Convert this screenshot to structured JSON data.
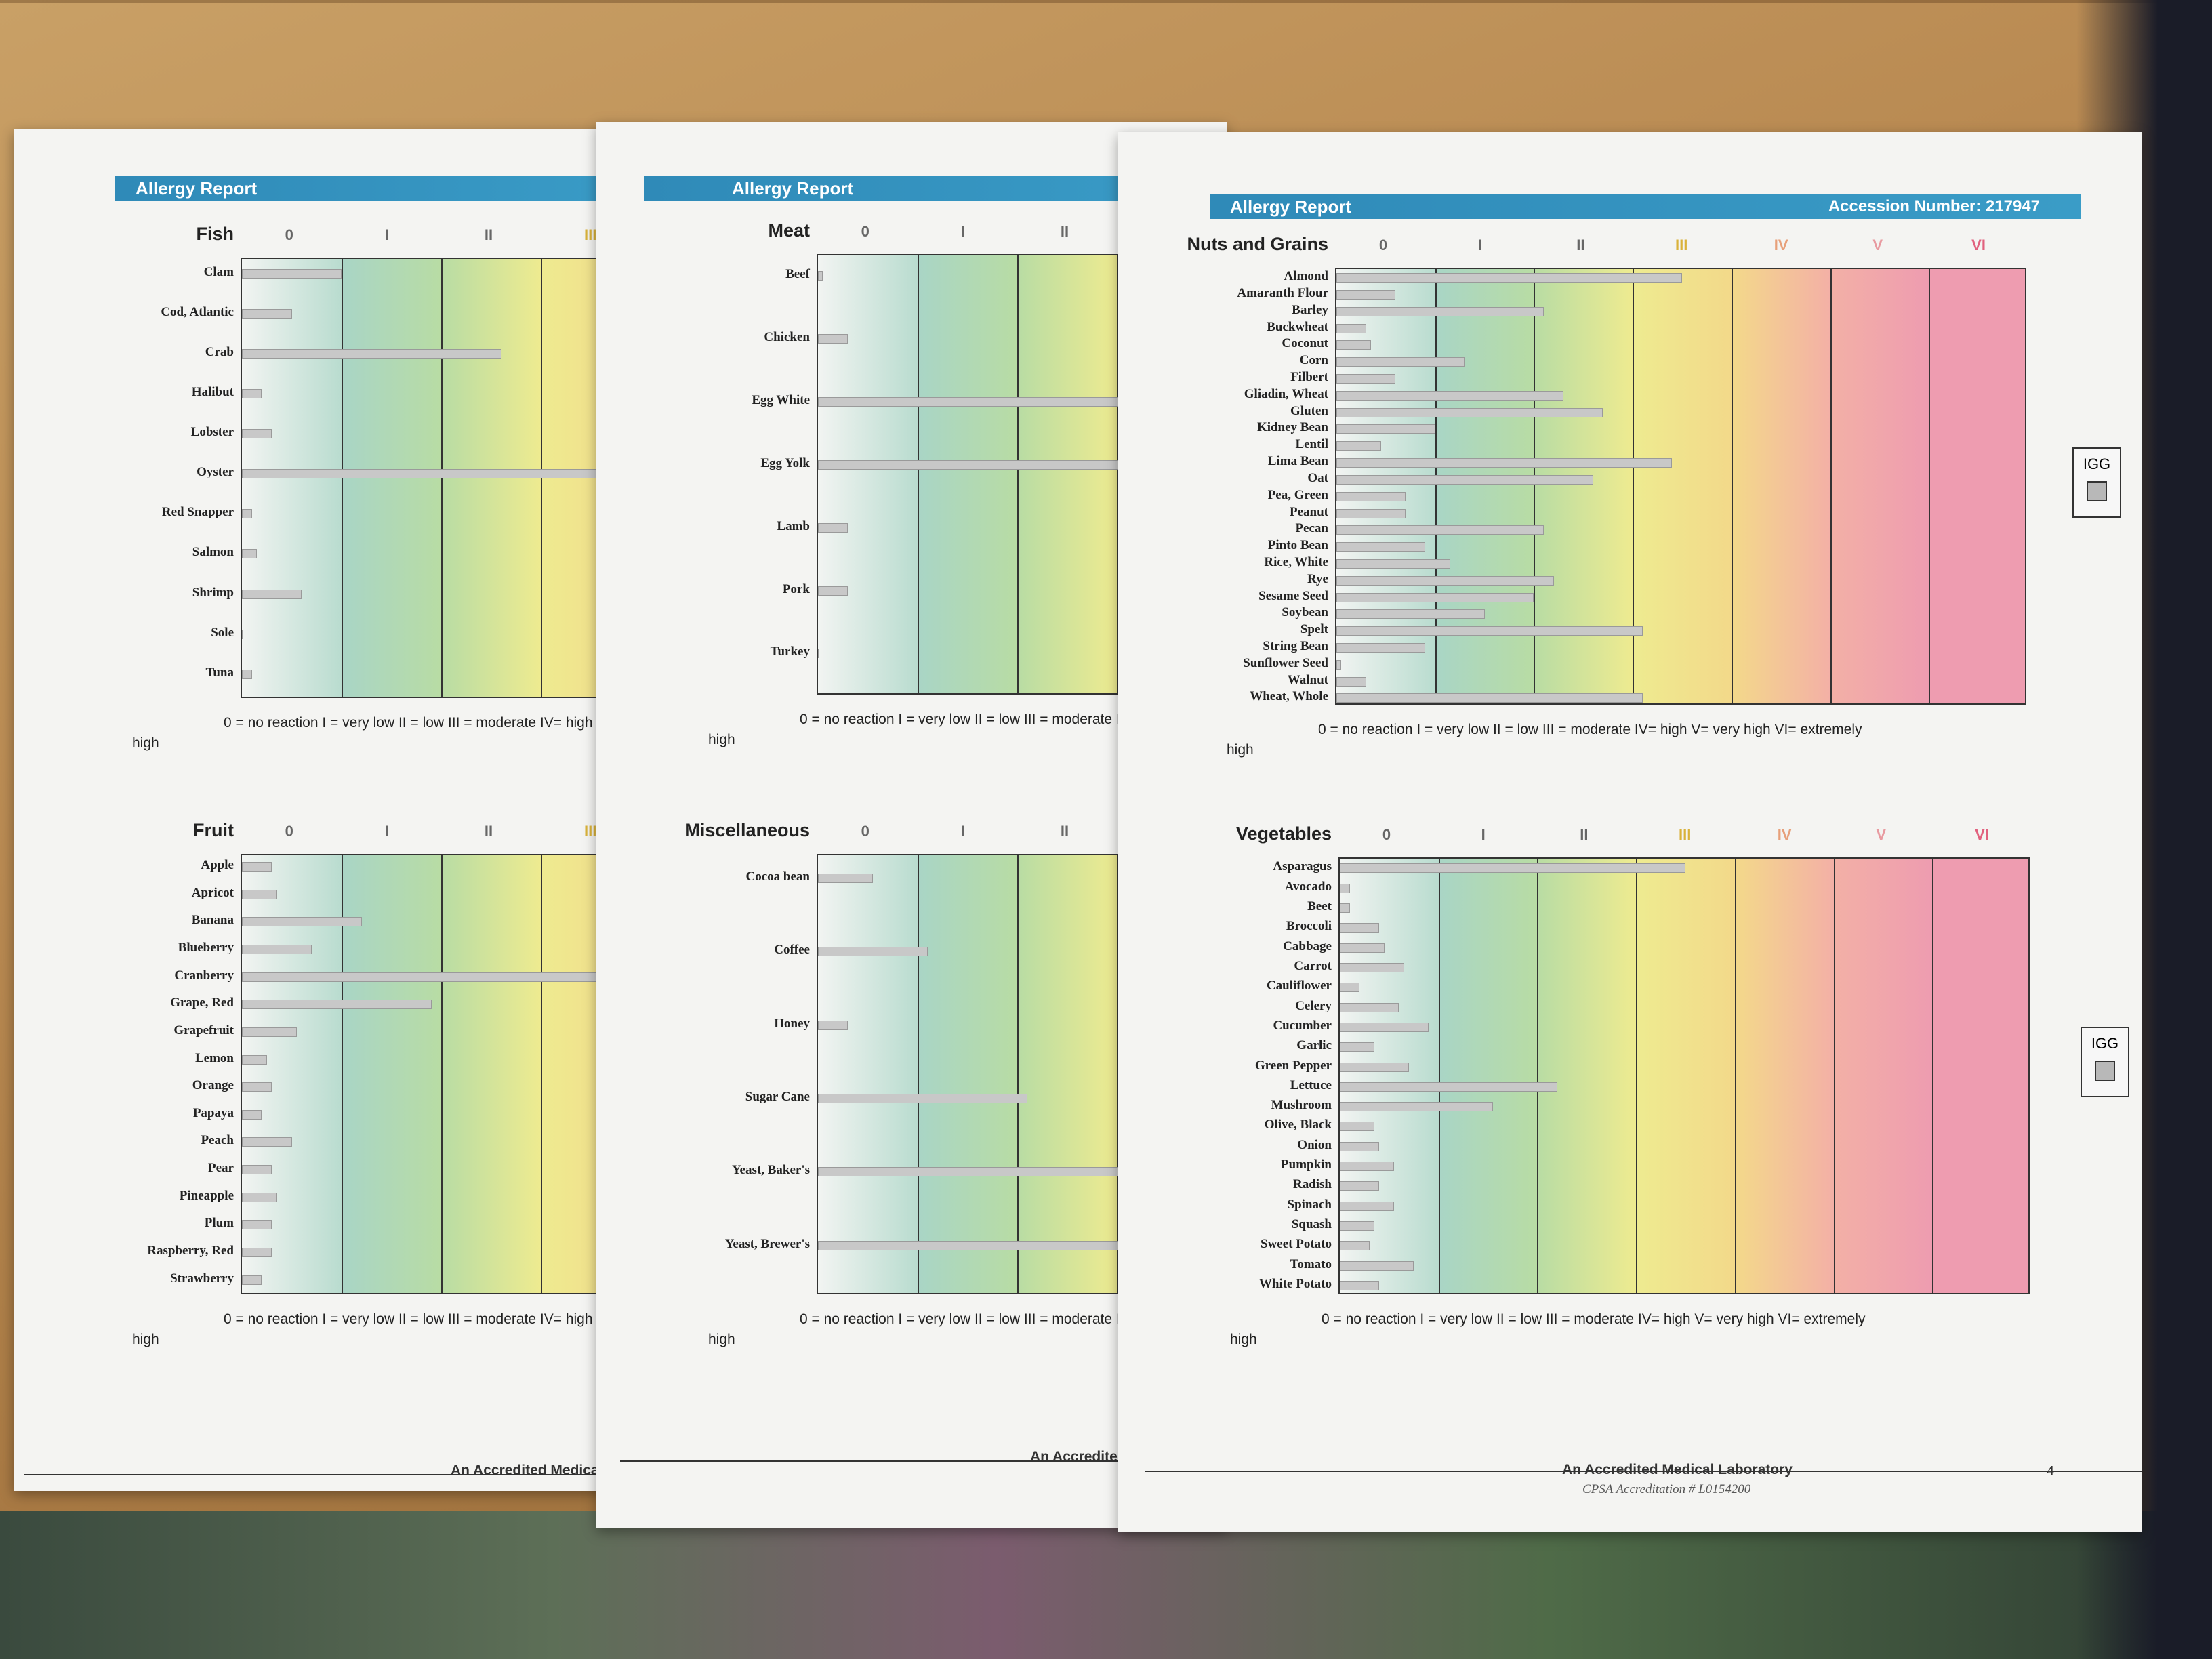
{
  "report_title": "Allergy Report",
  "accession": "Accession Number: 217947",
  "igg_label": "IGG",
  "footer_lab": "An Accredited Medical Laboratory",
  "footer_cps": "CPSA Accreditation # L0154200",
  "page_number": "4",
  "legend": {
    "text": "0 = no reaction   I = very low     II = low     III = moderate    IV= high    V= very high   VI= extremely",
    "high": "high"
  },
  "classes": [
    "0",
    "I",
    "II",
    "III",
    "IV",
    "V",
    "VI"
  ],
  "class_colors": [
    "#eaf2ef",
    "#a9d5c6",
    "#b8dca4",
    "#eeeb90",
    "#f3d98a",
    "#f3b0a6",
    "#ee9cb0"
  ],
  "chart_data": [
    {
      "type": "bar",
      "orientation": "horizontal",
      "title": "Fish",
      "categories": [
        "Clam",
        "Cod, Atlantic",
        "Crab",
        "Halibut",
        "Lobster",
        "Oyster",
        "Red Snapper",
        "Salmon",
        "Shrimp",
        "Sole",
        "Tuna"
      ],
      "values": [
        1.0,
        0.5,
        2.6,
        0.2,
        0.3,
        3.9,
        0.1,
        0.15,
        0.6,
        0.0,
        0.1
      ],
      "xlim": [
        0,
        7
      ]
    },
    {
      "type": "bar",
      "orientation": "horizontal",
      "title": "Fruit",
      "categories": [
        "Apple",
        "Apricot",
        "Banana",
        "Blueberry",
        "Cranberry",
        "Grape, Red",
        "Grapefruit",
        "Lemon",
        "Orange",
        "Papaya",
        "Peach",
        "Pear",
        "Pineapple",
        "Plum",
        "Raspberry, Red",
        "Strawberry"
      ],
      "values": [
        0.3,
        0.35,
        1.2,
        0.7,
        3.6,
        1.9,
        0.55,
        0.25,
        0.3,
        0.2,
        0.5,
        0.3,
        0.35,
        0.3,
        0.3,
        0.2
      ],
      "xlim": [
        0,
        7
      ]
    },
    {
      "type": "bar",
      "orientation": "horizontal",
      "title": "Meat",
      "categories": [
        "Beef",
        "Chicken",
        "Egg White",
        "Egg Yolk",
        "Lamb",
        "Pork",
        "Turkey"
      ],
      "values": [
        0.05,
        0.3,
        3.3,
        3.3,
        0.3,
        0.3,
        0.0
      ],
      "xlim": [
        0,
        7
      ]
    },
    {
      "type": "bar",
      "orientation": "horizontal",
      "title": "Miscellaneous",
      "categories": [
        "Cocoa bean",
        "Coffee",
        "Honey",
        "Sugar Cane",
        "Yeast, Baker's",
        "Yeast, Brewer's"
      ],
      "values": [
        0.55,
        1.1,
        0.3,
        2.1,
        3.3,
        3.3
      ],
      "xlim": [
        0,
        7
      ]
    },
    {
      "type": "bar",
      "orientation": "horizontal",
      "title": "Nuts and Grains",
      "categories": [
        "Almond",
        "Amaranth Flour",
        "Barley",
        "Buckwheat",
        "Coconut",
        "Corn",
        "Filbert",
        "Gliadin, Wheat",
        "Gluten",
        "Kidney Bean",
        "Lentil",
        "Lima Bean",
        "Oat",
        "Pea, Green",
        "Peanut",
        "Pecan",
        "Pinto Bean",
        "Rice, White",
        "Rye",
        "Sesame Seed",
        "Soybean",
        "Spelt",
        "String Bean",
        "Sunflower Seed",
        "Walnut",
        "Wheat, Whole"
      ],
      "values": [
        3.5,
        0.6,
        2.1,
        0.3,
        0.35,
        1.3,
        0.6,
        2.3,
        2.7,
        1.0,
        0.45,
        3.4,
        2.6,
        0.7,
        0.7,
        2.1,
        0.9,
        1.15,
        2.2,
        2.0,
        1.5,
        3.1,
        0.9,
        0.05,
        0.3,
        3.1
      ],
      "xlim": [
        0,
        7
      ]
    },
    {
      "type": "bar",
      "orientation": "horizontal",
      "title": "Vegetables",
      "categories": [
        "Asparagus",
        "Avocado",
        "Beet",
        "Broccoli",
        "Cabbage",
        "Carrot",
        "Cauliflower",
        "Celery",
        "Cucumber",
        "Garlic",
        "Green Pepper",
        "Lettuce",
        "Mushroom",
        "Olive, Black",
        "Onion",
        "Pumpkin",
        "Radish",
        "Spinach",
        "Squash",
        "Sweet Potato",
        "Tomato",
        "White Potato"
      ],
      "values": [
        3.5,
        0.1,
        0.1,
        0.4,
        0.45,
        0.65,
        0.2,
        0.6,
        0.9,
        0.35,
        0.7,
        2.2,
        1.55,
        0.35,
        0.4,
        0.55,
        0.4,
        0.55,
        0.35,
        0.3,
        0.75,
        0.4
      ],
      "xlim": [
        0,
        7
      ]
    }
  ]
}
